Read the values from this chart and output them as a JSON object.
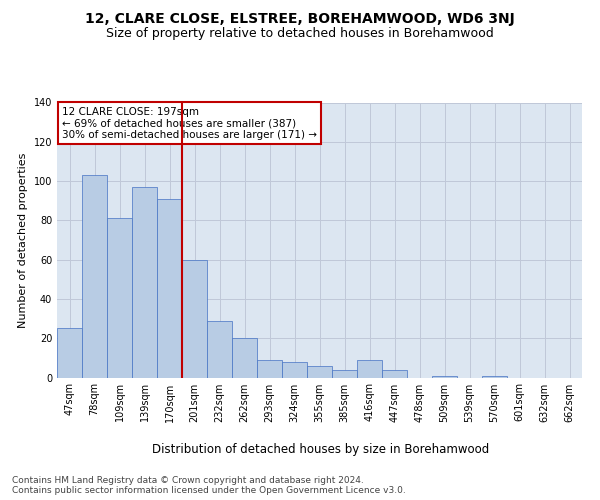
{
  "title": "12, CLARE CLOSE, ELSTREE, BOREHAMWOOD, WD6 3NJ",
  "subtitle": "Size of property relative to detached houses in Borehamwood",
  "xlabel": "Distribution of detached houses by size in Borehamwood",
  "ylabel": "Number of detached properties",
  "categories": [
    "47sqm",
    "78sqm",
    "109sqm",
    "139sqm",
    "170sqm",
    "201sqm",
    "232sqm",
    "262sqm",
    "293sqm",
    "324sqm",
    "355sqm",
    "385sqm",
    "416sqm",
    "447sqm",
    "478sqm",
    "509sqm",
    "539sqm",
    "570sqm",
    "601sqm",
    "632sqm",
    "662sqm"
  ],
  "values": [
    25,
    103,
    81,
    97,
    91,
    60,
    29,
    20,
    9,
    8,
    6,
    4,
    9,
    4,
    0,
    1,
    0,
    1,
    0,
    0,
    0
  ],
  "bar_color": "#b8cce4",
  "bar_edge_color": "#4472c4",
  "vline_color": "#c00000",
  "vline_x": 4.5,
  "annotation_text": "12 CLARE CLOSE: 197sqm\n← 69% of detached houses are smaller (387)\n30% of semi-detached houses are larger (171) →",
  "annotation_box_color": "white",
  "annotation_box_edge": "#c00000",
  "ylim": [
    0,
    140
  ],
  "yticks": [
    0,
    20,
    40,
    60,
    80,
    100,
    120,
    140
  ],
  "grid_color": "#c0c8d8",
  "background_color": "#dce6f1",
  "footer": "Contains HM Land Registry data © Crown copyright and database right 2024.\nContains public sector information licensed under the Open Government Licence v3.0.",
  "title_fontsize": 10,
  "subtitle_fontsize": 9,
  "xlabel_fontsize": 8.5,
  "ylabel_fontsize": 8,
  "tick_fontsize": 7,
  "annotation_fontsize": 7.5,
  "footer_fontsize": 6.5
}
